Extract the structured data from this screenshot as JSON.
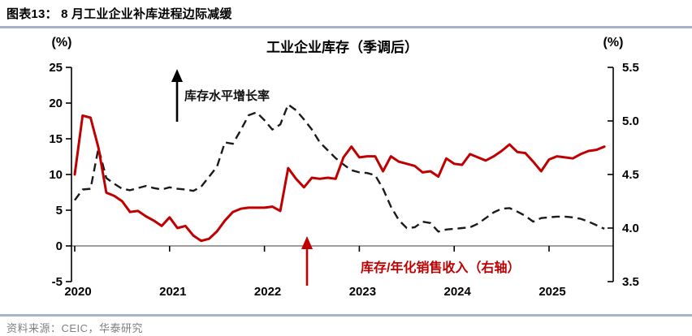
{
  "header": {
    "figure_label": "图表13：",
    "title": "8 月工业企业补库进程边际减缓"
  },
  "chart": {
    "title": "工业企业库存（季调后）",
    "left_axis_unit": "(%)",
    "right_axis_unit": "(%)",
    "annotations": {
      "black_arrow_label": "库存水平增长率",
      "red_arrow_label": "库存/年化销售收入（右轴）"
    },
    "colors": {
      "black_series": "#1a1a1a",
      "red_series": "#c00000",
      "zero_line": "#7f7f7f",
      "header_rule": "#a3b5c6",
      "source_text": "#7f7f7f"
    }
  },
  "chart_data": {
    "type": "line",
    "title": "工业企业库存（季调后）",
    "x_start": "2020-01",
    "x_end": "2025-08",
    "x_frequency": "monthly",
    "x_tick_labels": [
      "2020",
      "2021",
      "2022",
      "2023",
      "2024",
      "2025"
    ],
    "left_axis": {
      "label": "(%)",
      "min": -5,
      "max": 25,
      "ticks": [
        25,
        20,
        15,
        10,
        5,
        0,
        -5
      ]
    },
    "right_axis": {
      "label": "(%)",
      "min": 3.5,
      "max": 5.5,
      "ticks": [
        5.5,
        5.0,
        4.5,
        4.0,
        3.5
      ]
    },
    "grid": false,
    "legend": "in-plot arrow annotations",
    "series": [
      {
        "name": "库存水平增长率",
        "axis": "left",
        "style": "dashed",
        "color": "#1a1a1a",
        "values": [
          6.4,
          7.9,
          8.0,
          13.7,
          9.5,
          8.7,
          8.0,
          7.8,
          8.1,
          8.4,
          8.1,
          7.9,
          8.2,
          8.0,
          7.9,
          7.7,
          8.3,
          9.7,
          11.1,
          14.5,
          14.3,
          16.2,
          18.3,
          18.7,
          17.6,
          16.3,
          17.0,
          19.8,
          19.0,
          17.7,
          16.3,
          14.5,
          13.4,
          12.3,
          11.4,
          10.6,
          10.3,
          10.2,
          9.9,
          8.0,
          5.5,
          3.6,
          2.5,
          2.6,
          3.4,
          3.2,
          2.0,
          2.3,
          2.4,
          2.5,
          2.6,
          3.1,
          3.9,
          4.7,
          5.2,
          5.3,
          4.8,
          4.2,
          3.4,
          3.9,
          4.0,
          4.1,
          4.1,
          4.0,
          3.8,
          3.4,
          2.9,
          2.4
        ]
      },
      {
        "name": "库存/年化销售收入（右轴）",
        "axis": "right",
        "style": "solid",
        "color": "#c00000",
        "values": [
          4.5,
          5.05,
          5.03,
          4.75,
          4.33,
          4.3,
          4.25,
          4.15,
          4.16,
          4.11,
          4.07,
          4.02,
          4.1,
          4.0,
          4.02,
          3.93,
          3.88,
          3.9,
          3.97,
          4.07,
          4.15,
          4.18,
          4.19,
          4.19,
          4.19,
          4.2,
          4.16,
          4.56,
          4.46,
          4.38,
          4.47,
          4.46,
          4.47,
          4.46,
          4.66,
          4.76,
          4.66,
          4.67,
          4.67,
          4.53,
          4.67,
          4.62,
          4.6,
          4.58,
          4.52,
          4.53,
          4.48,
          4.65,
          4.6,
          4.59,
          4.69,
          4.66,
          4.63,
          4.67,
          4.72,
          4.78,
          4.71,
          4.7,
          4.62,
          4.53,
          4.64,
          4.67,
          4.66,
          4.65,
          4.69,
          4.72,
          4.73,
          4.76
        ]
      }
    ]
  },
  "footer": {
    "source": "资料来源：CEIC，华泰研究"
  }
}
